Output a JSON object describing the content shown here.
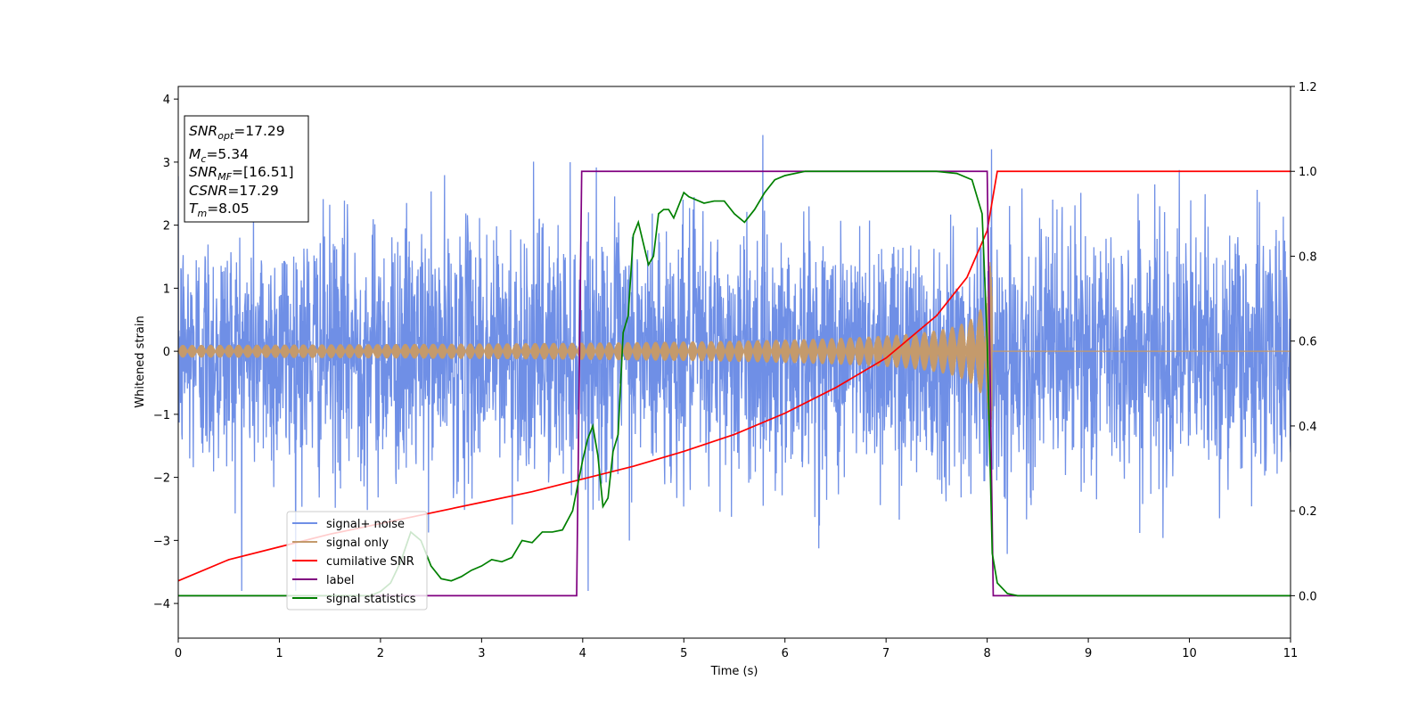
{
  "chart_data": {
    "type": "line",
    "xlabel": "Time (s)",
    "ylabel": "Whitened strain",
    "xlim": [
      0,
      11
    ],
    "ylim_left": [
      -4.55,
      4.2
    ],
    "ylim_right": [
      -0.1,
      1.2
    ],
    "x_ticks": [
      "0",
      "1",
      "2",
      "3",
      "4",
      "5",
      "6",
      "7",
      "8",
      "9",
      "10",
      "11"
    ],
    "y_left_ticks": [
      "4",
      "3",
      "2",
      "1",
      "0",
      "−1",
      "−2",
      "−3",
      "−4"
    ],
    "y_left_tick_values": [
      4,
      3,
      2,
      1,
      0,
      -1,
      -2,
      -3,
      -4
    ],
    "y_right_ticks": [
      "1.2",
      "1.0",
      "0.8",
      "0.6",
      "0.4",
      "0.2",
      "0.0"
    ],
    "y_right_tick_values": [
      1.2,
      1.0,
      0.8,
      0.6,
      0.4,
      0.2,
      0.0
    ],
    "grid": false,
    "legend_position": "lower-left",
    "annotation": {
      "lines": [
        {
          "var": "SNR",
          "sub": "opt",
          "value": "=17.29"
        },
        {
          "var": "M",
          "sub": "c",
          "value": "=5.34"
        },
        {
          "var": "SNR",
          "sub": "MF",
          "value": "=[16.51]"
        },
        {
          "var": "CSNR",
          "sub": "",
          "value": "=17.29"
        },
        {
          "var": "T",
          "sub": "m",
          "value": "=8.05"
        }
      ]
    },
    "series": [
      {
        "name": "signal+ noise",
        "axis": "left",
        "color": "#6f8fe6",
        "kind": "noise",
        "noise_std": 1.0,
        "envelope_max": 3.8
      },
      {
        "name": "signal only",
        "axis": "left",
        "color": "#c49a6c",
        "kind": "chirp",
        "t_merge": 8.05,
        "amp_start": 0.1,
        "amp_end": 1.8
      },
      {
        "name": "cumilative SNR",
        "axis": "right",
        "color": "#ff0000",
        "x": [
          0,
          0.5,
          1,
          1.5,
          2,
          2.5,
          3,
          3.5,
          4,
          4.5,
          5,
          5.5,
          6,
          6.5,
          7,
          7.5,
          7.8,
          8.0,
          8.05,
          8.1,
          11
        ],
        "y": [
          0.035,
          0.085,
          0.115,
          0.145,
          0.17,
          0.195,
          0.22,
          0.245,
          0.275,
          0.305,
          0.34,
          0.38,
          0.43,
          0.49,
          0.56,
          0.66,
          0.75,
          0.86,
          0.93,
          1.0,
          1.0
        ]
      },
      {
        "name": "label",
        "axis": "right",
        "color": "#800080",
        "x": [
          0,
          3.94,
          3.99,
          8.0,
          8.06,
          11
        ],
        "y": [
          0.0,
          0.0,
          1.0,
          1.0,
          0.0,
          0.0
        ]
      },
      {
        "name": "signal statistics",
        "axis": "right",
        "color": "#008000",
        "x": [
          0,
          1.9,
          2.0,
          2.1,
          2.2,
          2.3,
          2.4,
          2.5,
          2.6,
          2.7,
          2.8,
          2.9,
          3.0,
          3.1,
          3.2,
          3.3,
          3.4,
          3.5,
          3.6,
          3.7,
          3.8,
          3.9,
          4.0,
          4.05,
          4.1,
          4.15,
          4.2,
          4.25,
          4.3,
          4.35,
          4.4,
          4.45,
          4.5,
          4.55,
          4.6,
          4.65,
          4.7,
          4.75,
          4.8,
          4.85,
          4.9,
          5.0,
          5.05,
          5.1,
          5.2,
          5.3,
          5.4,
          5.5,
          5.6,
          5.7,
          5.8,
          5.9,
          6.0,
          6.2,
          6.5,
          6.8,
          7.0,
          7.5,
          7.7,
          7.85,
          7.95,
          8.0,
          8.05,
          8.1,
          8.2,
          8.3,
          11
        ],
        "y": [
          0.0,
          0.0,
          0.01,
          0.03,
          0.08,
          0.15,
          0.13,
          0.07,
          0.04,
          0.035,
          0.045,
          0.06,
          0.07,
          0.085,
          0.08,
          0.09,
          0.13,
          0.125,
          0.15,
          0.15,
          0.155,
          0.2,
          0.32,
          0.37,
          0.4,
          0.33,
          0.21,
          0.23,
          0.34,
          0.38,
          0.62,
          0.66,
          0.85,
          0.88,
          0.83,
          0.78,
          0.8,
          0.9,
          0.91,
          0.91,
          0.89,
          0.95,
          0.94,
          0.935,
          0.925,
          0.93,
          0.93,
          0.9,
          0.88,
          0.91,
          0.95,
          0.98,
          0.99,
          1.0,
          1.0,
          1.0,
          1.0,
          1.0,
          0.995,
          0.98,
          0.9,
          0.6,
          0.1,
          0.03,
          0.005,
          0.0,
          0.0
        ]
      }
    ]
  }
}
